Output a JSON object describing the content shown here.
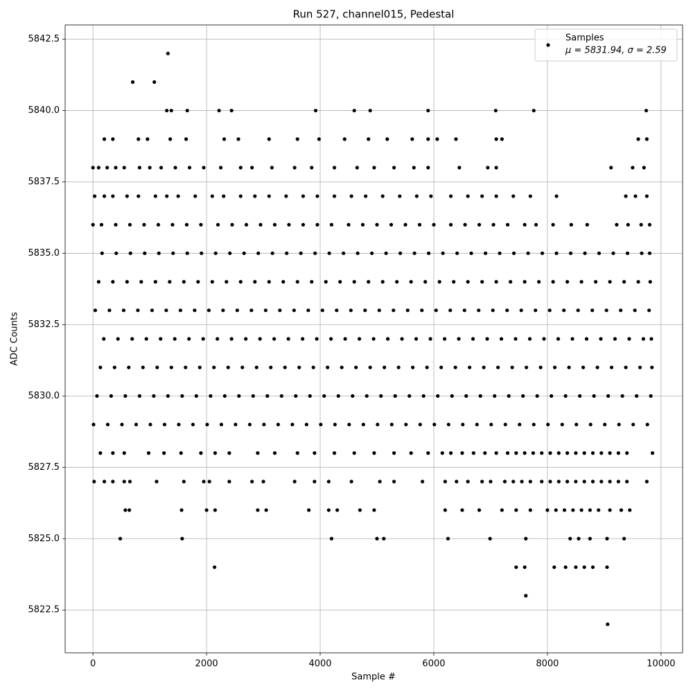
{
  "chart_data": {
    "type": "scatter",
    "title": "Run 527, channel015, Pedestal",
    "x_label": "Sample #",
    "y_label": "ADC Counts",
    "xlim": [
      -490,
      10380
    ],
    "ylim": [
      5821.0,
      5843.0
    ],
    "xticks": [
      0,
      2000,
      4000,
      6000,
      8000,
      10000
    ],
    "yticks": [
      5822.5,
      {
        "value": 5825.0,
        "label": "5825.0"
      },
      5827.5,
      {
        "value": 5830.0,
        "label": "5830.0"
      },
      5832.5,
      {
        "value": 5835.0,
        "label": "5835.0"
      },
      5837.5,
      {
        "value": 5840.0,
        "label": "5840.0"
      },
      5842.5
    ],
    "grid": true,
    "legend_position": "upper right",
    "legend_note": "μ = 5831.94, σ = 2.59",
    "series": [
      {
        "name": "Samples",
        "color": "#000000",
        "x": [
          10,
          260,
          510,
          760,
          1010,
          1260,
          1510,
          1760,
          2010,
          2260,
          2510,
          2760,
          3010,
          3260,
          3510,
          3760,
          4010,
          4260,
          4510,
          4760,
          5010,
          5260,
          5510,
          5760,
          6010,
          6260,
          6510,
          6760,
          7010,
          7260,
          7510,
          7760,
          8010,
          8260,
          8510,
          8760,
          9010,
          9260,
          9510,
          9760,
          70,
          320,
          570,
          820,
          1070,
          1320,
          1570,
          1820,
          2070,
          2320,
          2570,
          2820,
          3070,
          3320,
          3570,
          3820,
          4070,
          4320,
          4570,
          4820,
          5070,
          5320,
          5570,
          5820,
          6070,
          6320,
          6570,
          6820,
          7070,
          7320,
          7570,
          7820,
          8070,
          8320,
          8570,
          8820,
          9070,
          9320,
          9570,
          9820,
          130,
          380,
          630,
          880,
          1130,
          1380,
          1630,
          1880,
          2130,
          2380,
          2630,
          2880,
          3130,
          3380,
          3630,
          3880,
          4130,
          4380,
          4630,
          4880,
          5130,
          5380,
          5630,
          5880,
          6130,
          6380,
          6630,
          6880,
          7130,
          7380,
          7630,
          7880,
          8130,
          8380,
          8630,
          8880,
          9130,
          9380,
          9630,
          9840,
          190,
          440,
          690,
          940,
          1190,
          1440,
          1690,
          1940,
          2190,
          2440,
          2690,
          2940,
          3190,
          3440,
          3690,
          3940,
          4190,
          4440,
          4690,
          4940,
          5190,
          5440,
          5690,
          5940,
          6190,
          6440,
          6690,
          6940,
          7190,
          7440,
          7690,
          7940,
          8190,
          8440,
          8690,
          8940,
          9190,
          9440,
          9690,
          9830,
          40,
          290,
          540,
          790,
          1040,
          1290,
          1540,
          1790,
          2040,
          2290,
          2540,
          2790,
          3040,
          3290,
          3540,
          3790,
          4040,
          4290,
          4540,
          4790,
          5040,
          5290,
          5540,
          5790,
          6040,
          6290,
          6540,
          6790,
          7040,
          7290,
          7540,
          7790,
          8040,
          8290,
          8540,
          8790,
          9040,
          9290,
          9540,
          9790,
          100,
          350,
          600,
          850,
          1100,
          1350,
          1600,
          1850,
          2100,
          2350,
          2600,
          2850,
          3100,
          3350,
          3600,
          3850,
          4100,
          4350,
          4600,
          4850,
          5100,
          5350,
          5600,
          5850,
          6100,
          6350,
          6600,
          6850,
          7100,
          7350,
          7600,
          7850,
          8100,
          8350,
          8600,
          8850,
          9100,
          9350,
          9600,
          9810,
          160,
          410,
          660,
          910,
          1160,
          1410,
          1660,
          1910,
          2160,
          2410,
          2660,
          2910,
          3160,
          3410,
          3660,
          3910,
          4160,
          4410,
          4660,
          4910,
          5160,
          5410,
          5660,
          5910,
          6160,
          6410,
          6660,
          6910,
          7160,
          7410,
          7660,
          7910,
          8160,
          8410,
          8660,
          8910,
          9160,
          9410,
          9660,
          9800,
          0,
          150,
          400,
          650,
          900,
          1150,
          1400,
          1650,
          1900,
          2200,
          2450,
          2700,
          2950,
          3200,
          3450,
          3700,
          3950,
          4200,
          4500,
          4750,
          5000,
          5250,
          5500,
          5750,
          6000,
          6300,
          6550,
          6800,
          7050,
          7300,
          7600,
          7800,
          8100,
          8420,
          8700,
          9220,
          9420,
          9650,
          9800,
          30,
          200,
          350,
          600,
          800,
          1100,
          1300,
          1500,
          1800,
          2100,
          2300,
          2600,
          2850,
          3100,
          3400,
          3700,
          3950,
          4250,
          4550,
          4800,
          5100,
          5400,
          5700,
          5950,
          6300,
          6600,
          6850,
          7100,
          7400,
          7700,
          8160,
          9380,
          9550,
          9750,
          0,
          100,
          250,
          400,
          550,
          820,
          1000,
          1200,
          1450,
          1700,
          1950,
          2250,
          2600,
          2800,
          3150,
          3550,
          3850,
          4250,
          4650,
          4950,
          5300,
          5650,
          5900,
          6450,
          6950,
          7100,
          9120,
          9500,
          9700,
          200,
          350,
          800,
          960,
          1360,
          1640,
          2310,
          2560,
          3100,
          3600,
          3980,
          4430,
          4850,
          5180,
          5620,
          5900,
          6060,
          6390,
          7100,
          7200,
          9600,
          9750,
          1300,
          1380,
          1660,
          2220,
          2440,
          3920,
          4600,
          4880,
          5900,
          7090,
          7760,
          9740,
          700,
          1080,
          1320,
          130,
          350,
          550,
          980,
          1250,
          1550,
          1900,
          2150,
          2400,
          2900,
          3200,
          3600,
          3900,
          4250,
          4600,
          4950,
          5300,
          5600,
          5900,
          6150,
          6300,
          6500,
          6700,
          6900,
          7100,
          7300,
          7450,
          7600,
          7750,
          7900,
          8050,
          8200,
          8350,
          8500,
          8650,
          8800,
          8950,
          9100,
          9250,
          9400,
          9850,
          20,
          200,
          350,
          550,
          650,
          1120,
          1600,
          1950,
          2050,
          2400,
          2800,
          3000,
          3550,
          3900,
          4150,
          4550,
          5050,
          5300,
          5800,
          6200,
          6400,
          6600,
          6850,
          7000,
          7250,
          7400,
          7550,
          7700,
          7900,
          8050,
          8200,
          8350,
          8500,
          8650,
          8800,
          8950,
          9100,
          9250,
          9400,
          9750,
          570,
          640,
          1560,
          2000,
          2150,
          2900,
          3050,
          3800,
          4150,
          4300,
          4700,
          4950,
          6200,
          6500,
          6800,
          7200,
          7450,
          7700,
          8000,
          8150,
          8300,
          8450,
          8600,
          8750,
          8900,
          9100,
          9300,
          9450,
          480,
          1570,
          4200,
          5000,
          5120,
          6250,
          6990,
          7620,
          8400,
          8550,
          8750,
          9050,
          9350,
          2140,
          7450,
          7600,
          8120,
          8320,
          8500,
          8650,
          8800,
          9050,
          7620,
          9060
        ],
        "values": [
          5829,
          5829,
          5829,
          5829,
          5829,
          5829,
          5829,
          5829,
          5829,
          5829,
          5829,
          5829,
          5829,
          5829,
          5829,
          5829,
          5829,
          5829,
          5829,
          5829,
          5829,
          5829,
          5829,
          5829,
          5829,
          5829,
          5829,
          5829,
          5829,
          5829,
          5829,
          5829,
          5829,
          5829,
          5829,
          5829,
          5829,
          5829,
          5829,
          5829,
          5830,
          5830,
          5830,
          5830,
          5830,
          5830,
          5830,
          5830,
          5830,
          5830,
          5830,
          5830,
          5830,
          5830,
          5830,
          5830,
          5830,
          5830,
          5830,
          5830,
          5830,
          5830,
          5830,
          5830,
          5830,
          5830,
          5830,
          5830,
          5830,
          5830,
          5830,
          5830,
          5830,
          5830,
          5830,
          5830,
          5830,
          5830,
          5830,
          5830,
          5831,
          5831,
          5831,
          5831,
          5831,
          5831,
          5831,
          5831,
          5831,
          5831,
          5831,
          5831,
          5831,
          5831,
          5831,
          5831,
          5831,
          5831,
          5831,
          5831,
          5831,
          5831,
          5831,
          5831,
          5831,
          5831,
          5831,
          5831,
          5831,
          5831,
          5831,
          5831,
          5831,
          5831,
          5831,
          5831,
          5831,
          5831,
          5831,
          5831,
          5832,
          5832,
          5832,
          5832,
          5832,
          5832,
          5832,
          5832,
          5832,
          5832,
          5832,
          5832,
          5832,
          5832,
          5832,
          5832,
          5832,
          5832,
          5832,
          5832,
          5832,
          5832,
          5832,
          5832,
          5832,
          5832,
          5832,
          5832,
          5832,
          5832,
          5832,
          5832,
          5832,
          5832,
          5832,
          5832,
          5832,
          5832,
          5832,
          5832,
          5833,
          5833,
          5833,
          5833,
          5833,
          5833,
          5833,
          5833,
          5833,
          5833,
          5833,
          5833,
          5833,
          5833,
          5833,
          5833,
          5833,
          5833,
          5833,
          5833,
          5833,
          5833,
          5833,
          5833,
          5833,
          5833,
          5833,
          5833,
          5833,
          5833,
          5833,
          5833,
          5833,
          5833,
          5833,
          5833,
          5833,
          5833,
          5833,
          5833,
          5834,
          5834,
          5834,
          5834,
          5834,
          5834,
          5834,
          5834,
          5834,
          5834,
          5834,
          5834,
          5834,
          5834,
          5834,
          5834,
          5834,
          5834,
          5834,
          5834,
          5834,
          5834,
          5834,
          5834,
          5834,
          5834,
          5834,
          5834,
          5834,
          5834,
          5834,
          5834,
          5834,
          5834,
          5834,
          5834,
          5834,
          5834,
          5834,
          5834,
          5835,
          5835,
          5835,
          5835,
          5835,
          5835,
          5835,
          5835,
          5835,
          5835,
          5835,
          5835,
          5835,
          5835,
          5835,
          5835,
          5835,
          5835,
          5835,
          5835,
          5835,
          5835,
          5835,
          5835,
          5835,
          5835,
          5835,
          5835,
          5835,
          5835,
          5835,
          5835,
          5835,
          5835,
          5835,
          5835,
          5835,
          5835,
          5835,
          5835,
          5836,
          5836,
          5836,
          5836,
          5836,
          5836,
          5836,
          5836,
          5836,
          5836,
          5836,
          5836,
          5836,
          5836,
          5836,
          5836,
          5836,
          5836,
          5836,
          5836,
          5836,
          5836,
          5836,
          5836,
          5836,
          5836,
          5836,
          5836,
          5836,
          5836,
          5836,
          5836,
          5836,
          5836,
          5836,
          5836,
          5836,
          5836,
          5836,
          5837,
          5837,
          5837,
          5837,
          5837,
          5837,
          5837,
          5837,
          5837,
          5837,
          5837,
          5837,
          5837,
          5837,
          5837,
          5837,
          5837,
          5837,
          5837,
          5837,
          5837,
          5837,
          5837,
          5837,
          5837,
          5837,
          5837,
          5837,
          5837,
          5837,
          5837,
          5837,
          5837,
          5837,
          5838,
          5838,
          5838,
          5838,
          5838,
          5838,
          5838,
          5838,
          5838,
          5838,
          5838,
          5838,
          5838,
          5838,
          5838,
          5838,
          5838,
          5838,
          5838,
          5838,
          5838,
          5838,
          5838,
          5838,
          5838,
          5838,
          5838,
          5838,
          5838,
          5839,
          5839,
          5839,
          5839,
          5839,
          5839,
          5839,
          5839,
          5839,
          5839,
          5839,
          5839,
          5839,
          5839,
          5839,
          5839,
          5839,
          5839,
          5839,
          5839,
          5839,
          5839,
          5840,
          5840,
          5840,
          5840,
          5840,
          5840,
          5840,
          5840,
          5840,
          5840,
          5840,
          5840,
          5841,
          5841,
          5842,
          5828,
          5828,
          5828,
          5828,
          5828,
          5828,
          5828,
          5828,
          5828,
          5828,
          5828,
          5828,
          5828,
          5828,
          5828,
          5828,
          5828,
          5828,
          5828,
          5828,
          5828,
          5828,
          5828,
          5828,
          5828,
          5828,
          5828,
          5828,
          5828,
          5828,
          5828,
          5828,
          5828,
          5828,
          5828,
          5828,
          5828,
          5828,
          5828,
          5828,
          5828,
          5827,
          5827,
          5827,
          5827,
          5827,
          5827,
          5827,
          5827,
          5827,
          5827,
          5827,
          5827,
          5827,
          5827,
          5827,
          5827,
          5827,
          5827,
          5827,
          5827,
          5827,
          5827,
          5827,
          5827,
          5827,
          5827,
          5827,
          5827,
          5827,
          5827,
          5827,
          5827,
          5827,
          5827,
          5827,
          5827,
          5827,
          5827,
          5827,
          5827,
          5826,
          5826,
          5826,
          5826,
          5826,
          5826,
          5826,
          5826,
          5826,
          5826,
          5826,
          5826,
          5826,
          5826,
          5826,
          5826,
          5826,
          5826,
          5826,
          5826,
          5826,
          5826,
          5826,
          5826,
          5826,
          5826,
          5826,
          5826,
          5825,
          5825,
          5825,
          5825,
          5825,
          5825,
          5825,
          5825,
          5825,
          5825,
          5825,
          5825,
          5825,
          5824,
          5824,
          5824,
          5824,
          5824,
          5824,
          5824,
          5824,
          5824,
          5823,
          5822
        ]
      }
    ]
  }
}
